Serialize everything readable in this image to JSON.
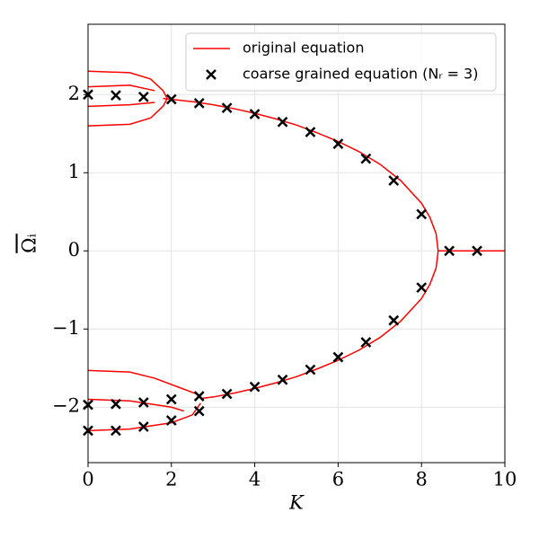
{
  "chart_data": {
    "type": "line-scatter",
    "xlabel": "K",
    "ylabel": "Ωᵢ",
    "xlim": [
      0,
      10
    ],
    "ylim": [
      -2.71,
      2.9
    ],
    "xticks": [
      0,
      2,
      4,
      6,
      8,
      10
    ],
    "yticks": [
      {
        "value": -2,
        "label": "−2"
      },
      {
        "value": -1,
        "label": "−1"
      },
      0,
      1,
      2
    ],
    "grid": true,
    "legend": "upper right",
    "series": [
      {
        "name": "original equation",
        "color": "#ff0000",
        "kind": "line",
        "x": [
          1.8,
          2.5,
          3,
          3.5,
          4,
          4.5,
          5,
          5.5,
          6,
          6.5,
          7,
          7.5,
          8,
          8.2,
          8.35,
          8.4,
          10,
          8.4,
          8.35,
          8.2,
          8,
          7.5,
          7,
          6.5,
          6,
          5.5,
          5,
          4.5,
          4,
          3.5,
          3,
          2.7,
          0,
          0,
          1,
          1.5,
          1.8,
          1.9,
          0,
          0,
          1,
          1.5,
          1.8,
          1.9,
          0,
          0,
          1,
          1.6,
          0,
          0,
          1,
          1.6,
          0,
          0,
          1,
          1.6,
          2.2,
          2.7,
          0,
          0,
          1,
          2,
          2.5,
          2.7,
          0,
          0,
          1,
          2,
          2.3
        ],
        "y": [
          1.95,
          1.91,
          1.87,
          1.82,
          1.76,
          1.69,
          1.61,
          1.51,
          1.4,
          1.27,
          1.11,
          0.9,
          0.61,
          0.43,
          0.22,
          0,
          0,
          0,
          -0.22,
          -0.43,
          -0.61,
          -0.9,
          -1.11,
          -1.27,
          -1.4,
          -1.51,
          -1.61,
          -1.69,
          -1.76,
          -1.82,
          -1.87,
          -1.89,
          null,
          2.3,
          2.28,
          2.2,
          2.05,
          1.95,
          null,
          1.6,
          1.62,
          1.7,
          1.85,
          1.95,
          null,
          1.85,
          1.87,
          1.9,
          null,
          2.1,
          2.12,
          2.05,
          null,
          -1.53,
          -1.55,
          -1.63,
          -1.75,
          -1.85,
          null,
          -2.3,
          -2.28,
          -2.2,
          -2.1,
          -1.95,
          null,
          -1.9,
          -1.92,
          -2.0,
          -2.05
        ]
      },
      {
        "name": "coarse grained equation (Nᵣ = 3)",
        "color": "#000000",
        "kind": "scatter",
        "x": [
          0,
          0.667,
          1.333,
          2,
          2.667,
          3.333,
          4,
          4.667,
          5.333,
          6,
          6.667,
          7.333,
          8,
          8.667,
          9.333,
          0,
          0.667,
          1.333,
          2,
          2.667,
          3.333,
          4,
          4.667,
          5.333,
          6,
          6.667,
          7.333,
          8,
          0,
          0.667,
          1.333,
          2,
          2.667
        ],
        "y": [
          2.0,
          1.99,
          1.97,
          1.94,
          1.89,
          1.83,
          1.75,
          1.65,
          1.52,
          1.37,
          1.18,
          0.9,
          0.47,
          0,
          0,
          -1.97,
          -1.96,
          -1.94,
          -1.9,
          -1.86,
          -1.83,
          -1.74,
          -1.65,
          -1.52,
          -1.36,
          -1.17,
          -0.89,
          -0.47,
          -2.3,
          -2.3,
          -2.25,
          -2.17,
          -2.05
        ]
      }
    ]
  }
}
